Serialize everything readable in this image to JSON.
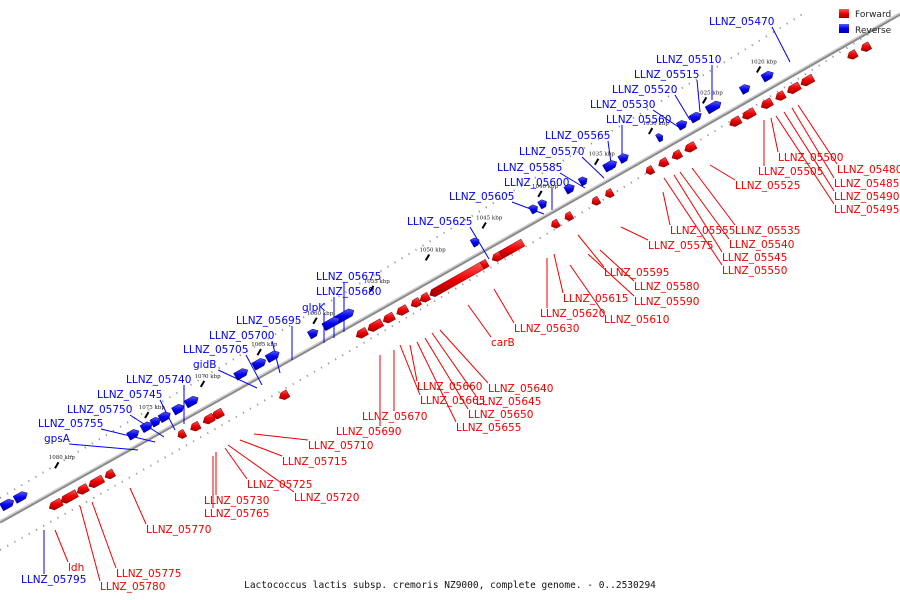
{
  "caption": "Lactococcus lactis subsp. cremoris NZ9000, complete genome. - 0..2530294",
  "colors": {
    "forward": "#ee0000",
    "reverse": "#0000ee",
    "backbone": "#888888",
    "dots": "#999999"
  },
  "legend": [
    {
      "label": "Forward",
      "color": "#ee0000"
    },
    {
      "label": "Reverse",
      "color": "#0000ee"
    }
  ],
  "ticks": [
    "1020 kbp",
    "1025 kbp",
    "1030 kbp",
    "1035 kbp",
    "1040 kbp",
    "1045 kbp",
    "1050 kbp",
    "1055 kbp",
    "1060 kbp",
    "1065 kbp",
    "1070 kbp",
    "1075 kbp",
    "1080 kbp"
  ],
  "reverse_labels": [
    "LLNZ_05470",
    "LLNZ_05510",
    "LLNZ_05515",
    "LLNZ_05520",
    "LLNZ_05530",
    "LLNZ_05560",
    "LLNZ_05565",
    "LLNZ_05570",
    "LLNZ_05585",
    "LLNZ_05600",
    "LLNZ_05605",
    "LLNZ_05625",
    "LLNZ_05675",
    "LLNZ_05680",
    "glpK",
    "LLNZ_05695",
    "LLNZ_05700",
    "LLNZ_05705",
    "gidB",
    "LLNZ_05740",
    "LLNZ_05745",
    "LLNZ_05750",
    "LLNZ_05755",
    "gpsA",
    "LLNZ_05795"
  ],
  "forward_labels": [
    "LLNZ_05480",
    "LLNZ_05485",
    "LLNZ_05490",
    "LLNZ_05495",
    "LLNZ_05500",
    "LLNZ_05505",
    "LLNZ_05525",
    "LLNZ_05535",
    "LLNZ_05540",
    "LLNZ_05545",
    "LLNZ_05550",
    "LLNZ_05555",
    "LLNZ_05575",
    "LLNZ_05580",
    "LLNZ_05590",
    "LLNZ_05595",
    "LLNZ_05610",
    "LLNZ_05615",
    "LLNZ_05620",
    "LLNZ_05630",
    "carB",
    "LLNZ_05640",
    "LLNZ_05645",
    "LLNZ_05650",
    "LLNZ_05655",
    "LLNZ_05660",
    "LLNZ_05665",
    "LLNZ_05670",
    "LLNZ_05690",
    "LLNZ_05710",
    "LLNZ_05715",
    "LLNZ_05720",
    "LLNZ_05725",
    "LLNZ_05730",
    "LLNZ_05765",
    "LLNZ_05770",
    "LLNZ_05775",
    "LLNZ_05780",
    "ldh"
  ]
}
